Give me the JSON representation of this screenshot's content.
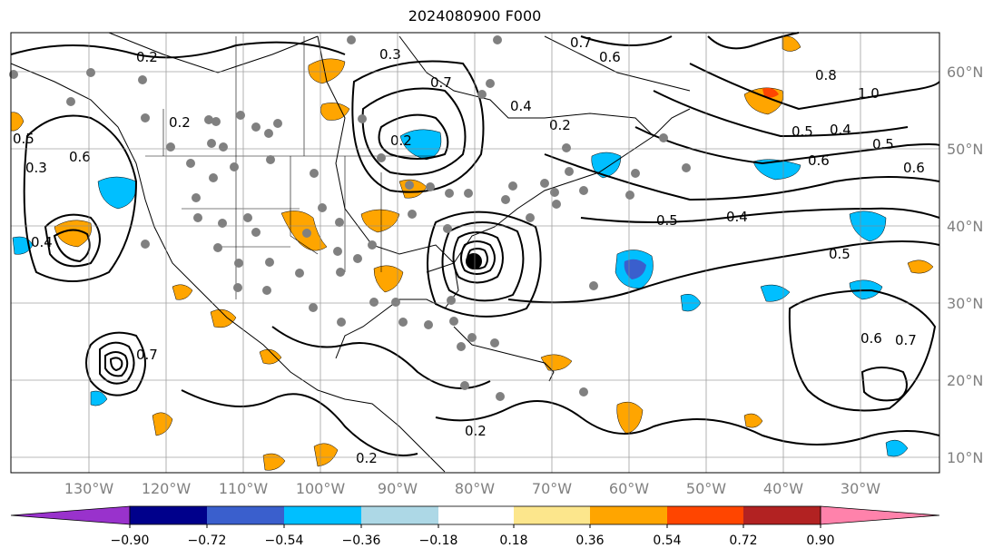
{
  "title": "2024080900 F000",
  "map": {
    "projection": "equirectangular",
    "extent": {
      "lon_min": -140,
      "lon_max": -20,
      "lat_min": 7,
      "lat_max": 65
    },
    "longitude_labels": [
      "130°W",
      "120°W",
      "110°W",
      "100°W",
      "90°W",
      "80°W",
      "70°W",
      "60°W",
      "50°W",
      "40°W",
      "30°W"
    ],
    "latitude_labels": [
      "60°N",
      "50°N",
      "40°N",
      "30°N",
      "20°N",
      "10°N"
    ],
    "gridlines": true,
    "contour_labels": [
      "0.2",
      "0.3",
      "0.7",
      "0.4",
      "0.2",
      "0.6",
      "0.8",
      "1.0",
      "0.7",
      "0.5",
      "0.4",
      "0.5",
      "0.6",
      "0.6",
      "0.5",
      "0.4",
      "0.5",
      "0.6",
      "0.7",
      "0.3",
      "0.5",
      "0.6",
      "0.4",
      "0.7",
      "0.2",
      "0.2",
      "0.2",
      "0.2"
    ],
    "station_marker_color": "#808080",
    "contour_color": "#000000",
    "land_outline_color": "#000000"
  },
  "colorbar": {
    "orientation": "horizontal",
    "extend": "both",
    "ticks": [
      "−0.90",
      "−0.72",
      "−0.54",
      "−0.36",
      "−0.18",
      "0.18",
      "0.36",
      "0.54",
      "0.72",
      "0.90"
    ],
    "colors": [
      "#9932cc",
      "#00008b",
      "#3a5fcd",
      "#00bfff",
      "#add8e6",
      "#ffffff",
      "#fce68c",
      "#ffa500",
      "#ff4500",
      "#b22222",
      "#ff82ab"
    ]
  }
}
